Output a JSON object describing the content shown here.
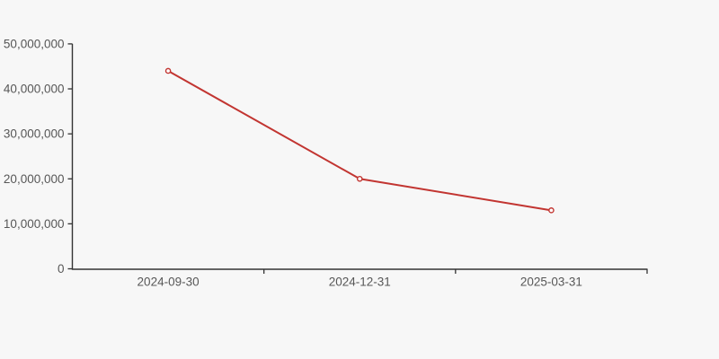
{
  "chart_data": {
    "type": "line",
    "title": "",
    "xlabel": "",
    "ylabel": "",
    "categories": [
      "2024-09-30",
      "2024-12-31",
      "2025-03-31"
    ],
    "series": [
      {
        "name": "series-1",
        "values": [
          44000000,
          20000000,
          13000000
        ]
      }
    ],
    "y_ticks": [
      0,
      10000000,
      20000000,
      30000000,
      40000000,
      50000000
    ],
    "y_tick_labels": [
      "0",
      "10,000,000",
      "20,000,000",
      "30,000,000",
      "40,000,000",
      "50,000,000"
    ],
    "ylim": [
      0,
      50000000
    ],
    "grid": false,
    "legend_position": "none",
    "marker": "open-circle",
    "colors": {
      "line": "#c23531",
      "marker_fill": "#ffffff",
      "axis": "#333333",
      "tick_label": "#575757",
      "background": "#f7f7f7"
    }
  }
}
